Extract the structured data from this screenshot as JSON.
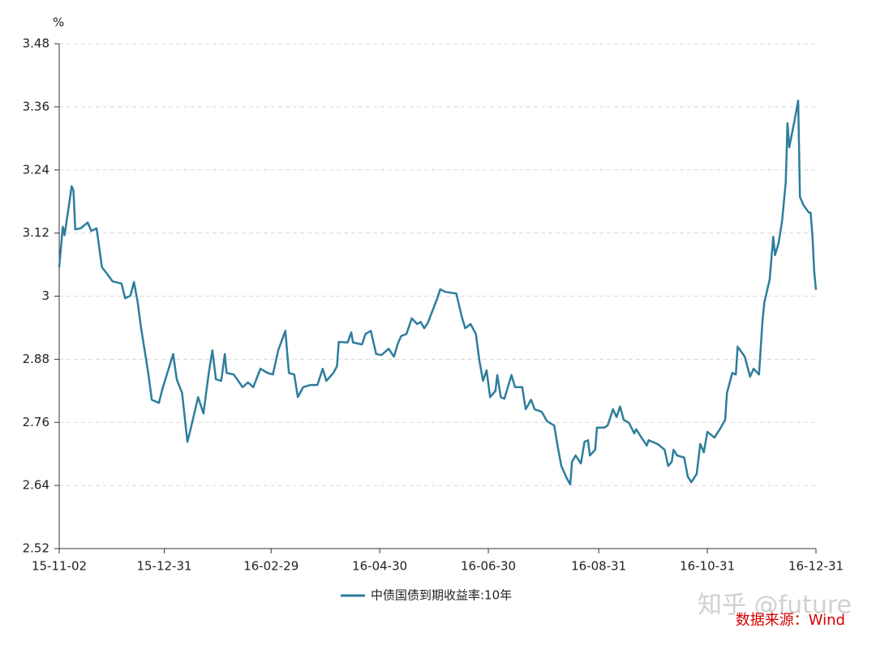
{
  "chart_data": {
    "type": "line",
    "y_label": "%",
    "xlim": [
      "15-11-02",
      "16-12-31"
    ],
    "xticks": [
      "15-11-02",
      "15-12-31",
      "16-02-29",
      "16-04-30",
      "16-06-30",
      "16-08-31",
      "16-10-31",
      "16-12-31"
    ],
    "ylim": [
      2.52,
      3.48
    ],
    "yticks": [
      2.52,
      2.64,
      2.76,
      2.88,
      3,
      3.12,
      3.24,
      3.36,
      3.48
    ],
    "grid": true,
    "legend": "bottom",
    "watermark": "知乎 @future",
    "source": "数据来源：Wind",
    "x": [
      "15-11-02",
      "15-11-04",
      "15-11-05",
      "15-11-09",
      "15-11-10",
      "15-11-11",
      "15-11-14",
      "15-11-18",
      "15-11-20",
      "15-11-23",
      "15-11-26",
      "15-11-29",
      "15-12-02",
      "15-12-07",
      "15-12-09",
      "15-12-12",
      "15-12-14",
      "15-12-16",
      "15-12-18",
      "15-12-22",
      "15-12-24",
      "15-12-28",
      "15-12-30",
      "16-01-05",
      "16-01-07",
      "16-01-10",
      "16-01-13",
      "16-01-15",
      "16-01-19",
      "16-01-22",
      "16-01-25",
      "16-01-27",
      "16-01-29",
      "16-02-01",
      "16-02-03",
      "16-02-04",
      "16-02-08",
      "16-02-13",
      "16-02-16",
      "16-02-19",
      "16-02-23",
      "16-02-27",
      "16-03-01",
      "16-03-04",
      "16-03-08",
      "16-03-10",
      "16-03-13",
      "16-03-15",
      "16-03-18",
      "16-03-22",
      "16-03-26",
      "16-03-29",
      "16-03-31",
      "16-04-04",
      "16-04-06",
      "16-04-07",
      "16-04-12",
      "16-04-14",
      "16-04-15",
      "16-04-20",
      "16-04-22",
      "16-04-25",
      "16-04-28",
      "16-05-01",
      "16-05-05",
      "16-05-08",
      "16-05-10",
      "16-05-12",
      "16-05-15",
      "16-05-18",
      "16-05-21",
      "16-05-23",
      "16-05-25",
      "16-05-27",
      "16-06-01",
      "16-06-03",
      "16-06-06",
      "16-06-12",
      "16-06-15",
      "16-06-17",
      "16-06-20",
      "16-06-23",
      "16-06-25",
      "16-06-27",
      "16-06-29",
      "16-07-01",
      "16-07-04",
      "16-07-05",
      "16-07-07",
      "16-07-09",
      "16-07-13",
      "16-07-15",
      "16-07-19",
      "16-07-21",
      "16-07-24",
      "16-07-26",
      "16-07-30",
      "16-08-02",
      "16-08-06",
      "16-08-08",
      "16-08-10",
      "16-08-13",
      "16-08-15",
      "16-08-16",
      "16-08-18",
      "16-08-21",
      "16-08-23",
      "16-08-25",
      "16-08-26",
      "16-08-29",
      "16-08-30",
      "16-09-03",
      "16-09-05",
      "16-09-08",
      "16-09-10",
      "16-09-12",
      "16-09-14",
      "16-09-17",
      "16-09-20",
      "16-09-21",
      "16-09-24",
      "16-09-27",
      "16-09-28",
      "16-10-03",
      "16-10-07",
      "16-10-09",
      "16-10-11",
      "16-10-12",
      "16-10-14",
      "16-10-18",
      "16-10-20",
      "16-10-22",
      "16-10-25",
      "16-10-27",
      "16-10-29",
      "16-10-31",
      "16-11-04",
      "16-11-07",
      "16-11-10",
      "16-11-11",
      "16-11-14",
      "16-11-16",
      "16-11-17",
      "16-11-21",
      "16-11-24",
      "16-11-26",
      "16-11-29",
      "16-12-01",
      "16-12-02",
      "16-12-05",
      "16-12-07",
      "16-12-08",
      "16-12-10",
      "16-12-12",
      "16-12-14",
      "16-12-15",
      "16-12-16",
      "16-12-19",
      "16-12-21",
      "16-12-22",
      "16-12-24",
      "16-12-27",
      "16-12-28",
      "16-12-29",
      "16-12-30",
      "16-12-31"
    ],
    "series": [
      {
        "name": "中债国债到期收益率:10年",
        "color": "#2e7d9c",
        "values": [
          3.055,
          3.132,
          3.116,
          3.209,
          3.201,
          3.127,
          3.129,
          3.14,
          3.124,
          3.129,
          3.055,
          3.042,
          3.028,
          3.024,
          2.996,
          3.001,
          3.027,
          2.99,
          2.939,
          2.854,
          2.803,
          2.797,
          2.824,
          2.89,
          2.842,
          2.816,
          2.723,
          2.75,
          2.808,
          2.777,
          2.854,
          2.897,
          2.842,
          2.839,
          2.89,
          2.854,
          2.851,
          2.827,
          2.836,
          2.827,
          2.862,
          2.854,
          2.851,
          2.897,
          2.934,
          2.854,
          2.851,
          2.808,
          2.827,
          2.831,
          2.831,
          2.862,
          2.839,
          2.854,
          2.867,
          2.913,
          2.912,
          2.931,
          2.912,
          2.908,
          2.928,
          2.934,
          2.89,
          2.888,
          2.9,
          2.885,
          2.908,
          2.924,
          2.928,
          2.958,
          2.947,
          2.951,
          2.939,
          2.949,
          2.993,
          3.013,
          3.008,
          3.005,
          2.962,
          2.939,
          2.947,
          2.928,
          2.877,
          2.839,
          2.859,
          2.808,
          2.82,
          2.85,
          2.808,
          2.805,
          2.85,
          2.827,
          2.827,
          2.785,
          2.803,
          2.785,
          2.78,
          2.762,
          2.754,
          2.713,
          2.677,
          2.654,
          2.642,
          2.685,
          2.697,
          2.682,
          2.723,
          2.726,
          2.697,
          2.708,
          2.75,
          2.75,
          2.754,
          2.785,
          2.77,
          2.79,
          2.765,
          2.759,
          2.739,
          2.747,
          2.731,
          2.716,
          2.726,
          2.719,
          2.708,
          2.677,
          2.685,
          2.708,
          2.697,
          2.693,
          2.657,
          2.646,
          2.662,
          2.719,
          2.703,
          2.742,
          2.731,
          2.747,
          2.765,
          2.816,
          2.854,
          2.851,
          2.904,
          2.885,
          2.847,
          2.862,
          2.851,
          2.955,
          2.988,
          3.032,
          3.113,
          3.078,
          3.101,
          3.144,
          3.216,
          3.329,
          3.283,
          3.335,
          3.372,
          3.189,
          3.173,
          3.159,
          3.159,
          3.116,
          3.047,
          3.012
        ]
      }
    ]
  }
}
